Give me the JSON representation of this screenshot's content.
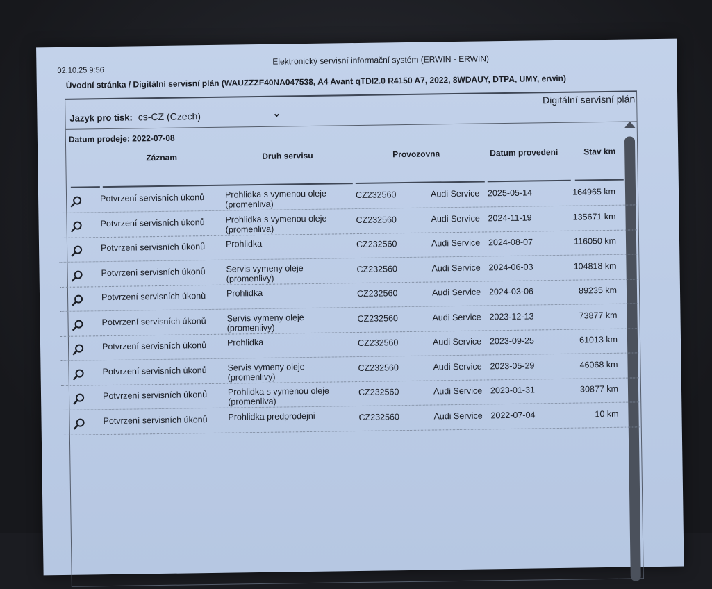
{
  "header": {
    "timestamp": "02.10.25 9:56",
    "system_title": "Elektronický servisní informační systém (ERWIN - ERWIN)",
    "breadcrumb": "Úvodní stránka / Digitální servisní plán (WAUZZZF40NA047538, A4 Avant qTDI2.0 R4150 A7, 2022, 8WDAUY, DTPA, UMY, erwin)"
  },
  "panel": {
    "title": "Digitální servisní plán",
    "language_label": "Jazyk pro tisk:",
    "language_value": "cs-CZ (Czech)",
    "sale_date": "Datum prodeje: 2022-07-08"
  },
  "table": {
    "columns": [
      "Záznam",
      "Druh servisu",
      "Provozovna",
      "Datum provedení",
      "Stav km"
    ],
    "rows": [
      {
        "record": "Potvrzení servisních úkonů",
        "type": "Prohlidka s vymenou oleje",
        "type2": "(promenliva)",
        "code": "CZ232560",
        "workshop": "Audi Service",
        "date": "2025-05-14",
        "km": "164965 km"
      },
      {
        "record": "Potvrzení servisních úkonů",
        "type": "Prohlidka s vymenou oleje",
        "type2": "(promenliva)",
        "code": "CZ232560",
        "workshop": "Audi Service",
        "date": "2024-11-19",
        "km": "135671 km"
      },
      {
        "record": "Potvrzení servisních úkonů",
        "type": "Prohlidka",
        "type2": "",
        "code": "CZ232560",
        "workshop": "Audi Service",
        "date": "2024-08-07",
        "km": "116050 km"
      },
      {
        "record": "Potvrzení servisních úkonů",
        "type": "Servis vymeny oleje",
        "type2": "(promenlivy)",
        "code": "CZ232560",
        "workshop": "Audi Service",
        "date": "2024-06-03",
        "km": "104818 km"
      },
      {
        "record": "Potvrzení servisních úkonů",
        "type": "Prohlidka",
        "type2": "",
        "code": "CZ232560",
        "workshop": "Audi Service",
        "date": "2024-03-06",
        "km": "89235 km"
      },
      {
        "record": "Potvrzení servisních úkonů",
        "type": "Servis vymeny oleje",
        "type2": "(promenlivy)",
        "code": "CZ232560",
        "workshop": "Audi Service",
        "date": "2023-12-13",
        "km": "73877 km"
      },
      {
        "record": "Potvrzení servisních úkonů",
        "type": "Prohlidka",
        "type2": "",
        "code": "CZ232560",
        "workshop": "Audi Service",
        "date": "2023-09-25",
        "km": "61013 km"
      },
      {
        "record": "Potvrzení servisních úkonů",
        "type": "Servis vymeny oleje",
        "type2": "(promenlivy)",
        "code": "CZ232560",
        "workshop": "Audi Service",
        "date": "2023-05-29",
        "km": "46068 km"
      },
      {
        "record": "Potvrzení servisních úkonů",
        "type": "Prohlidka s vymenou oleje",
        "type2": "(promenliva)",
        "code": "CZ232560",
        "workshop": "Audi Service",
        "date": "2023-01-31",
        "km": "30877 km"
      },
      {
        "record": "Potvrzení servisních úkonů",
        "type": "Prohlidka predprodejni",
        "type2": "",
        "code": "CZ232560",
        "workshop": "Audi Service",
        "date": "2022-07-04",
        "km": "10 km"
      }
    ]
  }
}
